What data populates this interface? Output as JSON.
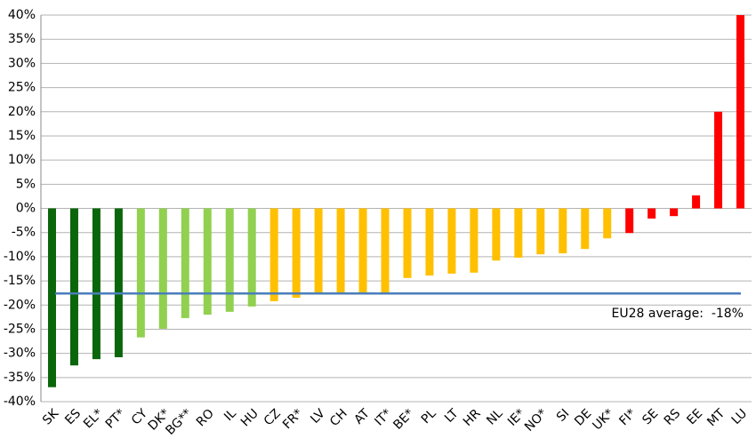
{
  "chart_data": {
    "type": "bar",
    "categories": [
      "SK",
      "ES",
      "EL*",
      "PT*",
      "CY",
      "DK*",
      "BG**",
      "RO",
      "IL",
      "HU",
      "CZ",
      "FR*",
      "LV",
      "CH",
      "AT",
      "IT*",
      "BE*",
      "PL",
      "LT",
      "HR",
      "NL",
      "IE*",
      "NO*",
      "SI",
      "DE",
      "UK*",
      "FI*",
      "SE",
      "RS",
      "EE",
      "MT",
      "LU"
    ],
    "values": [
      -37,
      -32.5,
      -31.2,
      -30.8,
      -26.7,
      -24.9,
      -22.7,
      -22,
      -21.4,
      -20.3,
      -19.2,
      -18.5,
      -17.6,
      -17.5,
      -17.5,
      -17.5,
      -14.4,
      -13.9,
      -13.5,
      -13.3,
      -10.8,
      -10.2,
      -9.5,
      -9.3,
      -8.4,
      -6.2,
      -5.1,
      -2.1,
      -1.6,
      2.7,
      20,
      40
    ],
    "colors": [
      "#0a660a",
      "#0a660a",
      "#0a660a",
      "#0a660a",
      "#92d050",
      "#92d050",
      "#92d050",
      "#92d050",
      "#92d050",
      "#92d050",
      "#ffc000",
      "#ffc000",
      "#ffc000",
      "#ffc000",
      "#ffc000",
      "#ffc000",
      "#ffc000",
      "#ffc000",
      "#ffc000",
      "#ffc000",
      "#ffc000",
      "#ffc000",
      "#ffc000",
      "#ffc000",
      "#ffc000",
      "#ffc000",
      "#ff0000",
      "#ff0000",
      "#ff0000",
      "#ff0000",
      "#ff0000",
      "#ff0000"
    ],
    "ylim": [
      -40,
      40
    ],
    "yticks": [
      {
        "value": -40,
        "label": "-40%"
      },
      {
        "value": -35,
        "label": "-35%"
      },
      {
        "value": -30,
        "label": "-30%"
      },
      {
        "value": -25,
        "label": "-25%"
      },
      {
        "value": -20,
        "label": "-20%"
      },
      {
        "value": -15,
        "label": "-15%"
      },
      {
        "value": -10,
        "label": "-10%"
      },
      {
        "value": -5,
        "label": "-5%"
      },
      {
        "value": 0,
        "label": "0%"
      },
      {
        "value": 5,
        "label": "5%"
      },
      {
        "value": 10,
        "label": "10%"
      },
      {
        "value": 15,
        "label": "15%"
      },
      {
        "value": 20,
        "label": "20%"
      },
      {
        "value": 25,
        "label": "25%"
      },
      {
        "value": 30,
        "label": "30%"
      },
      {
        "value": 35,
        "label": "35%"
      },
      {
        "value": 40,
        "label": "40%"
      }
    ],
    "grid": true,
    "average_line": {
      "value": -17.6,
      "label": "EU28 average:  -18%",
      "color": "#4a7ebb"
    }
  }
}
